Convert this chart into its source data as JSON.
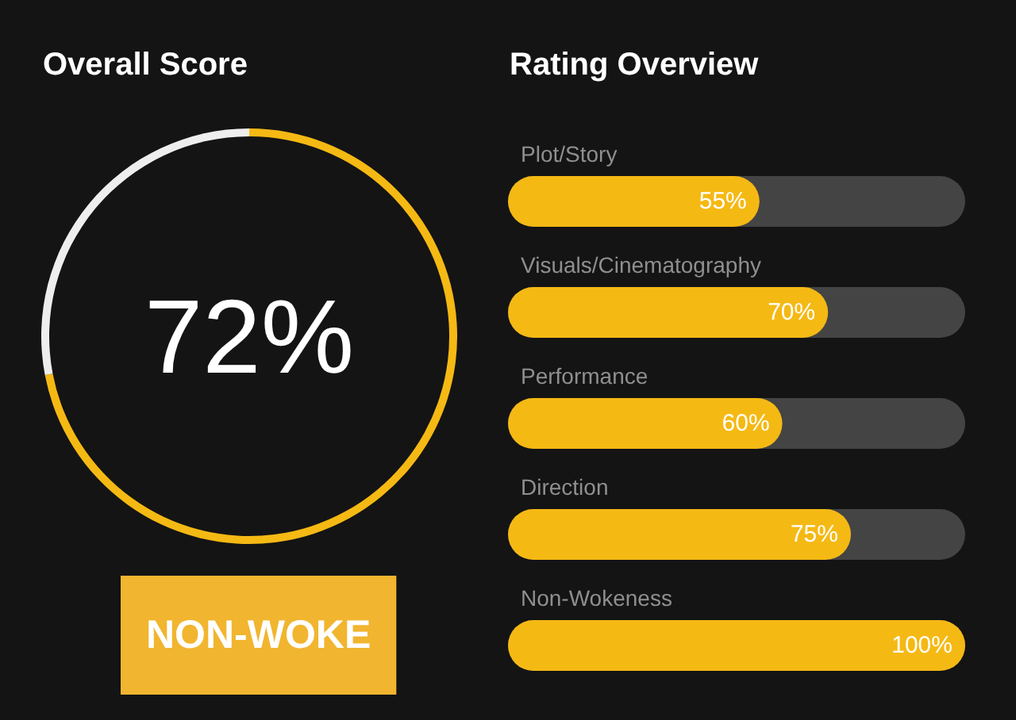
{
  "chart_data": [
    {
      "type": "donut",
      "title": "Overall Score",
      "categories": [
        null,
        null
      ],
      "values": [
        72,
        28
      ],
      "colors": [
        "#f5b914",
        "#eeeeee"
      ],
      "value_labels": [
        "72%",
        null
      ],
      "annotations": [
        "NON-WOKE"
      ]
    },
    {
      "type": "bar",
      "orientation": "horizontal",
      "title": "Rating Overview",
      "categories": [
        "Plot/Story",
        "Visuals/Cinematography",
        "Performance",
        "Direction",
        "Non-Wokeness"
      ],
      "values": [
        55,
        70,
        60,
        75,
        100
      ],
      "color": "#f5b914",
      "value_labels": [
        "55%",
        "70%",
        "60%",
        "75%",
        "100%"
      ],
      "xlim": [
        0,
        100
      ]
    }
  ]
}
